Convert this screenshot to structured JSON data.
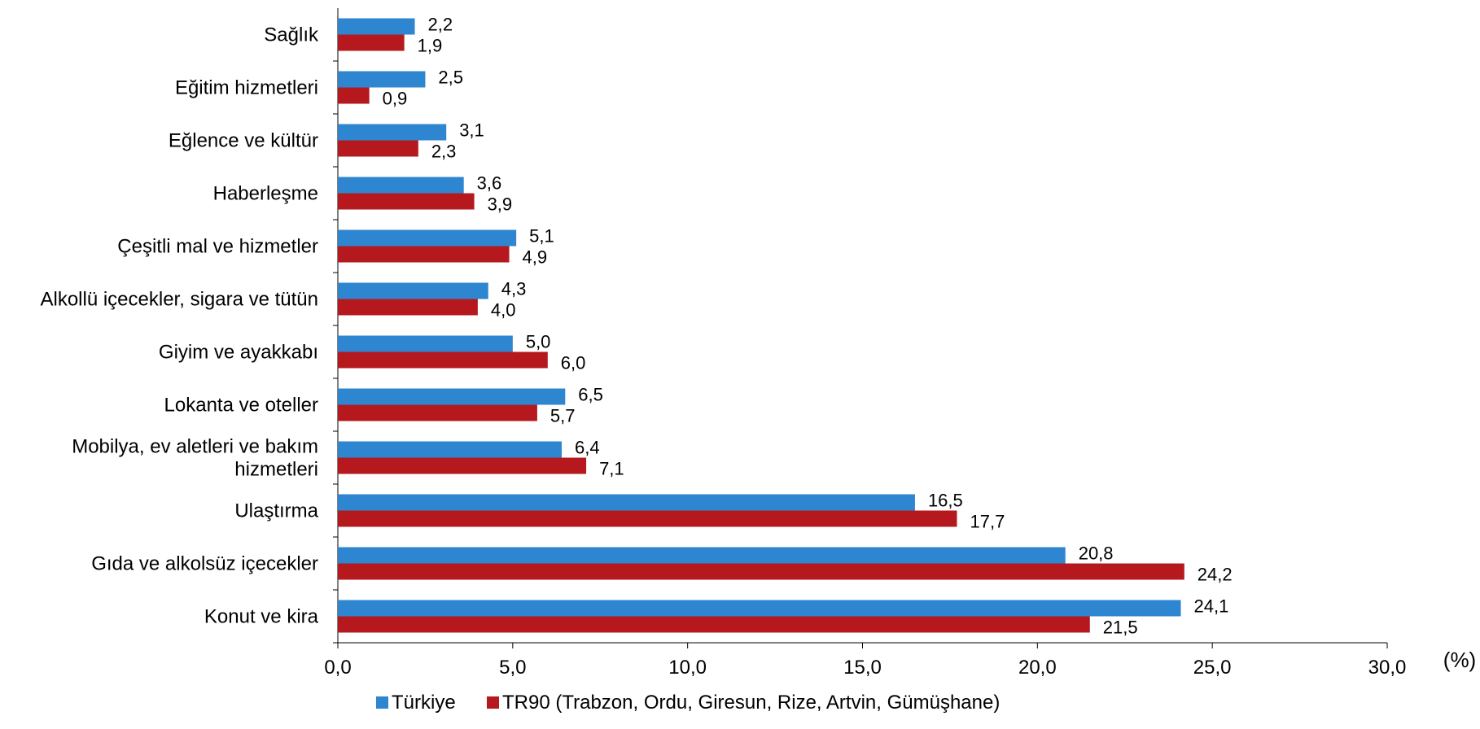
{
  "chart_data": {
    "type": "bar",
    "orientation": "horizontal",
    "categories": [
      "Sağlık",
      "Eğitim hizmetleri",
      "Eğlence ve kültür",
      "Haberleşme",
      "Çeşitli mal ve hizmetler",
      "Alkollü içecekler, sigara ve tütün",
      "Giyim ve ayakkabı",
      "Lokanta ve oteller",
      "Mobilya, ev aletleri ve bakım hizmetleri",
      "Ulaştırma",
      "Gıda ve alkolsüz içecekler",
      "Konut ve kira"
    ],
    "series": [
      {
        "name": "Türkiye",
        "color": "#2E86D1",
        "values": [
          2.2,
          2.5,
          3.1,
          3.6,
          5.1,
          4.3,
          5.0,
          6.5,
          6.4,
          16.5,
          20.8,
          24.1
        ],
        "labels": [
          "2,2",
          "2,5",
          "3,1",
          "3,6",
          "5,1",
          "4,3",
          "5,0",
          "6,5",
          "6,4",
          "16,5",
          "20,8",
          "24,1"
        ]
      },
      {
        "name": "TR90 (Trabzon, Ordu, Giresun, Rize, Artvin, Gümüşhane)",
        "color": "#B5191E",
        "values": [
          1.9,
          0.9,
          2.3,
          3.9,
          4.9,
          4.0,
          6.0,
          5.7,
          7.1,
          17.7,
          24.2,
          21.5
        ],
        "labels": [
          "1,9",
          "0,9",
          "2,3",
          "3,9",
          "4,9",
          "4,0",
          "6,0",
          "5,7",
          "7,1",
          "17,7",
          "24,2",
          "21,5"
        ]
      }
    ],
    "xlim": [
      0,
      30
    ],
    "xticks": [
      0,
      5,
      10,
      15,
      20,
      25,
      30
    ],
    "xtick_labels": [
      "0,0",
      "5,0",
      "10,0",
      "15,0",
      "20,0",
      "25,0",
      "30,0"
    ],
    "xlabel": "(%)",
    "title": "",
    "ylabel": "",
    "grid": false,
    "legend_position": "bottom"
  }
}
